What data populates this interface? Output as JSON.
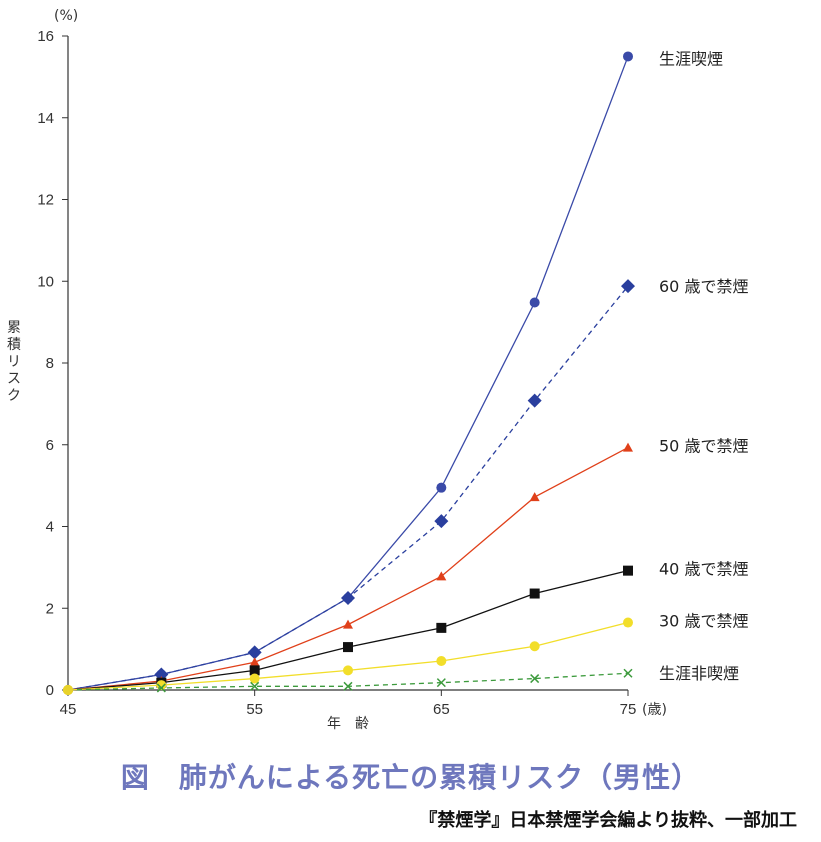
{
  "chart_data": {
    "type": "line",
    "x": [
      45,
      50,
      55,
      60,
      65,
      70,
      75
    ],
    "xlim": [
      45,
      75
    ],
    "xticks": [
      45,
      55,
      65,
      75
    ],
    "xunit": "(歳)",
    "xlabel": "年　齢",
    "ylim": [
      0,
      16
    ],
    "yticks": [
      0,
      2,
      4,
      6,
      8,
      10,
      12,
      14,
      16
    ],
    "yunit": "(%)",
    "ylabel": "累積リスク",
    "grid": false,
    "legend": "labels at line ends (right)",
    "series": [
      {
        "name": "生涯喫煙",
        "values": [
          0,
          0.38,
          0.92,
          2.25,
          4.95,
          9.48,
          15.5
        ],
        "color": "#3a4aa8",
        "marker": "circle",
        "dashed": false
      },
      {
        "name": "60 歳で禁煙",
        "values": [
          0,
          0.38,
          0.92,
          2.25,
          4.13,
          7.08,
          9.88
        ],
        "color": "#2a3f9e",
        "marker": "diamond",
        "dashed": true
      },
      {
        "name": "50 歳で禁煙",
        "values": [
          0,
          0.22,
          0.68,
          1.6,
          2.78,
          4.72,
          5.93
        ],
        "color": "#e0401a",
        "marker": "triangle",
        "dashed": false
      },
      {
        "name": "40 歳で禁煙",
        "values": [
          0,
          0.18,
          0.48,
          1.05,
          1.52,
          2.36,
          2.92
        ],
        "color": "#111111",
        "marker": "square",
        "dashed": false
      },
      {
        "name": "30 歳で禁煙",
        "values": [
          0,
          0.12,
          0.28,
          0.48,
          0.71,
          1.07,
          1.65
        ],
        "color": "#f2de2a",
        "marker": "circle",
        "dashed": false
      },
      {
        "name": "生涯非喫煙",
        "values": [
          0,
          0.05,
          0.09,
          0.09,
          0.18,
          0.28,
          0.41
        ],
        "color": "#3c9a3c",
        "marker": "cross",
        "dashed": true
      }
    ]
  },
  "caption": "図　肺がんによる死亡の累積リスク（男性）",
  "source": "『禁煙学』日本禁煙学会編より抜粋、一部加工"
}
